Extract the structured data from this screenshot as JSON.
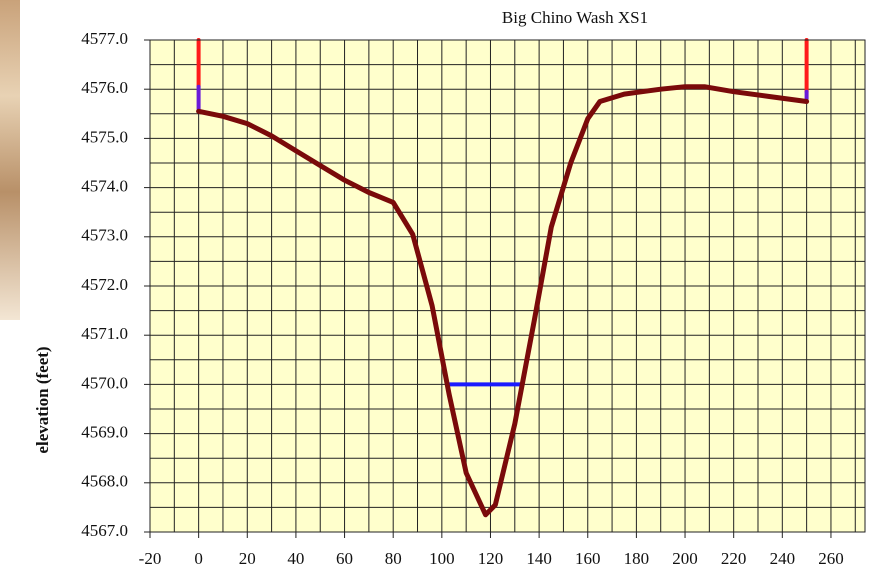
{
  "chart_data": {
    "type": "line",
    "title": "Big Chino Wash XS1",
    "y_label": "elevation (feet)",
    "xlim": [
      -20,
      274
    ],
    "ylim": [
      4567,
      4577
    ],
    "xticks": [
      -20,
      0,
      20,
      40,
      60,
      80,
      100,
      120,
      140,
      160,
      180,
      200,
      220,
      240,
      260
    ],
    "minor_xticks": [
      -10,
      10,
      30,
      50,
      70,
      90,
      110,
      130,
      150,
      170,
      190,
      210,
      230,
      250,
      270
    ],
    "yticks": [
      {
        "value": 4567,
        "label": "4567.0"
      },
      {
        "value": 4568,
        "label": "4568.0"
      },
      {
        "value": 4569,
        "label": "4569.0"
      },
      {
        "value": 4570,
        "label": "4570.0"
      },
      {
        "value": 4571,
        "label": "4571.0"
      },
      {
        "value": 4572,
        "label": "4572.0"
      },
      {
        "value": 4573,
        "label": "4573.0"
      },
      {
        "value": 4574,
        "label": "4574.0"
      },
      {
        "value": 4575,
        "label": "4575.0"
      },
      {
        "value": 4576,
        "label": "4576.0"
      },
      {
        "value": 4577,
        "label": "4577.0"
      }
    ],
    "minor_yticks": [
      4567.5,
      4568.5,
      4569.5,
      4570.5,
      4571.5,
      4572.5,
      4573.5,
      4574.5,
      4575.5,
      4576.5
    ],
    "grid": true,
    "series": [
      {
        "color": "#ff1a1a",
        "line_width": 4,
        "x": [
          0,
          0
        ],
        "values": [
          4577,
          4576.05
        ]
      },
      {
        "color": "#6a1ad8",
        "line_width": 4,
        "x": [
          0,
          0
        ],
        "values": [
          4576.05,
          4575.6
        ]
      },
      {
        "color": "#ff1a1a",
        "line_width": 4,
        "x": [
          250,
          250
        ],
        "values": [
          4577,
          4575.95
        ]
      },
      {
        "color": "#6a1ad8",
        "line_width": 4,
        "x": [
          250,
          250
        ],
        "values": [
          4575.95,
          4575.8
        ]
      },
      {
        "color": "#1a1aff",
        "line_width": 4,
        "x": [
          103,
          133
        ],
        "values": [
          4570,
          4570
        ]
      },
      {
        "color": "#7a0a0a",
        "line_width": 5,
        "x": [
          0,
          10,
          20,
          30,
          40,
          50,
          60,
          70,
          80,
          88,
          96,
          103,
          110,
          118,
          122,
          130,
          138,
          145,
          153,
          160,
          165,
          175,
          190,
          200,
          208,
          220,
          235,
          250
        ],
        "values": [
          4575.55,
          4575.45,
          4575.3,
          4575.05,
          4574.75,
          4574.45,
          4574.15,
          4573.9,
          4573.7,
          4573.05,
          4571.6,
          4569.8,
          4568.2,
          4567.35,
          4567.55,
          4569.2,
          4571.3,
          4573.2,
          4574.5,
          4575.4,
          4575.75,
          4575.9,
          4576.0,
          4576.05,
          4576.05,
          4575.95,
          4575.85,
          4575.75
        ]
      }
    ]
  }
}
